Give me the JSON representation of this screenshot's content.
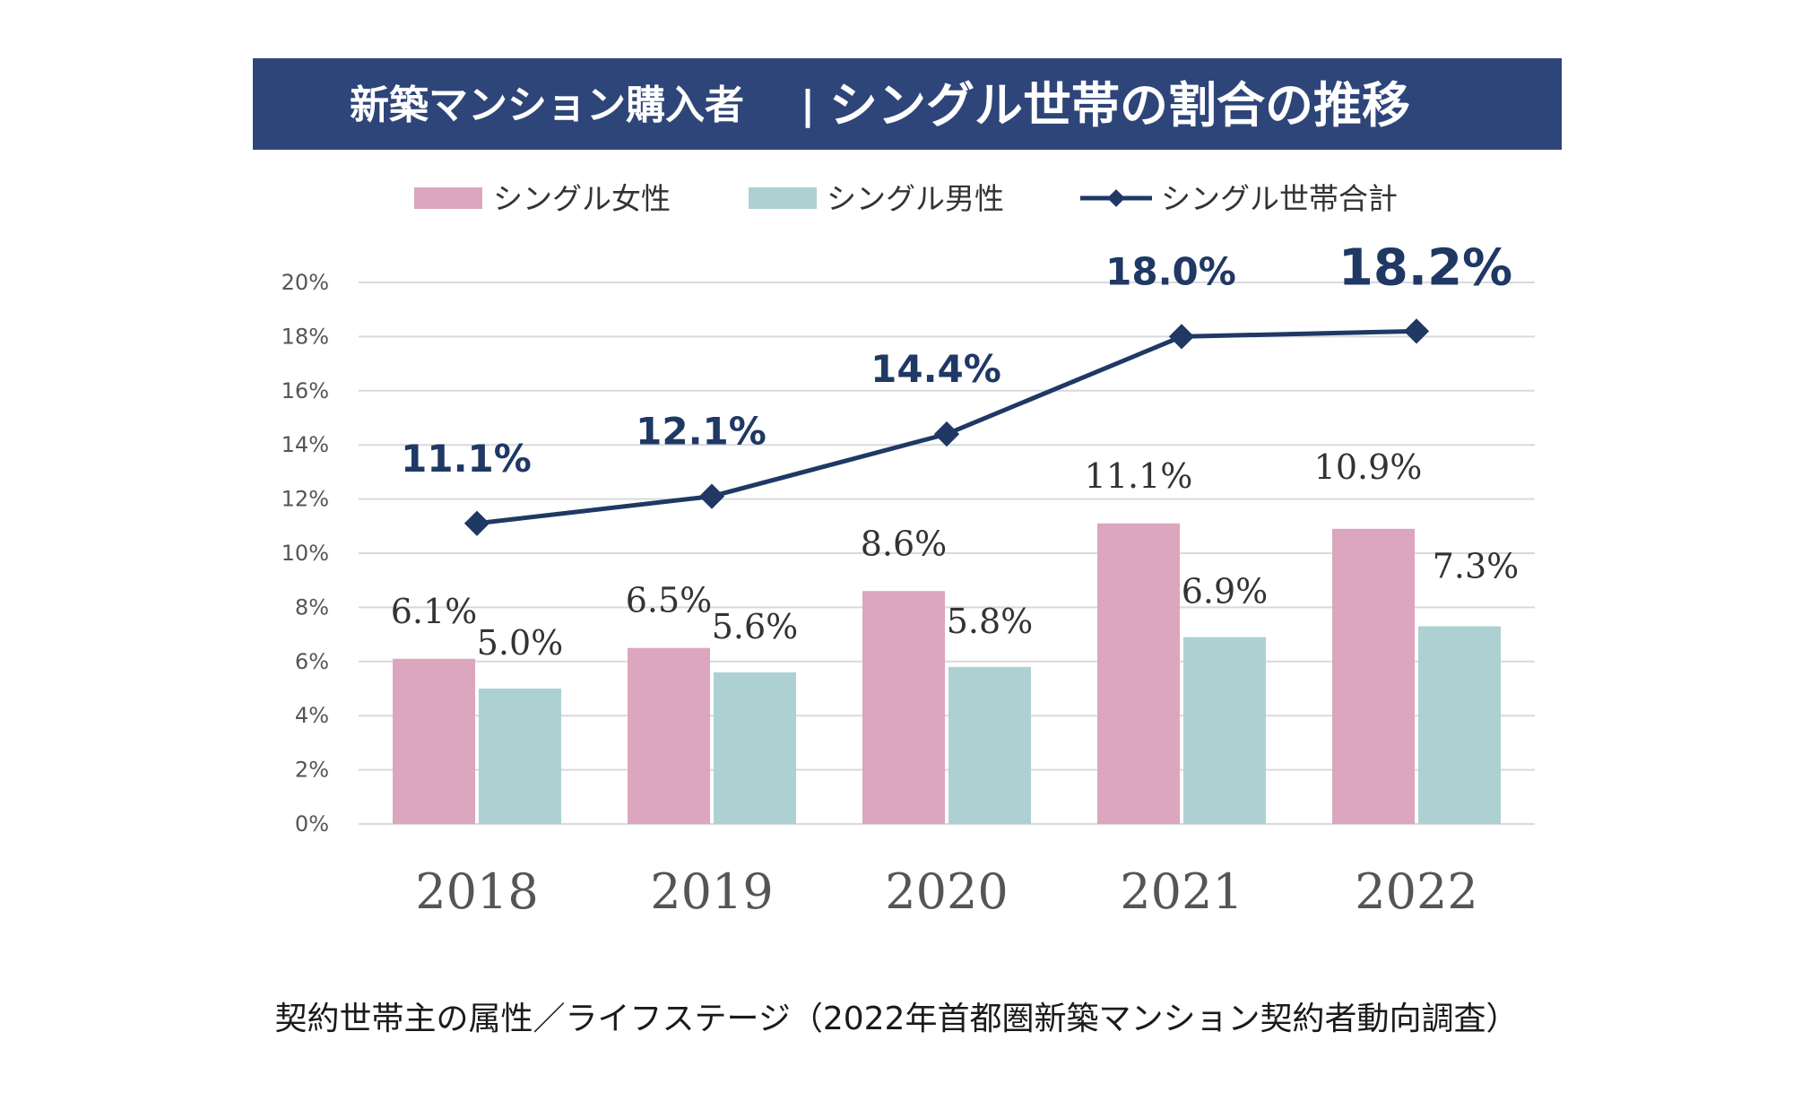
{
  "chart_data": {
    "type": "bar",
    "title_part1": "新築マンション購入者",
    "title_separator": "|",
    "title_part2": "シングル世帯の割合の推移",
    "caption": "契約世帯主の属性／ライフステージ（2022年首都圏新築マンション契約者動向調査）",
    "categories": [
      "2018",
      "2019",
      "2020",
      "2021",
      "2022"
    ],
    "ylim": [
      0,
      20
    ],
    "yticks": [
      "0%",
      "2%",
      "4%",
      "6%",
      "8%",
      "10%",
      "12%",
      "14%",
      "16%",
      "18%",
      "20%"
    ],
    "grid": true,
    "legend_position": "top",
    "series": [
      {
        "name": "シングル女性",
        "kind": "bar",
        "color": "#dba6be",
        "values": [
          6.1,
          6.5,
          8.6,
          11.1,
          10.9
        ],
        "labels": [
          "6.1%",
          "6.5%",
          "8.6%",
          "11.1%",
          "10.9%"
        ]
      },
      {
        "name": "シングル男性",
        "kind": "bar",
        "color": "#add1d3",
        "values": [
          5.0,
          5.6,
          5.8,
          6.9,
          7.3
        ],
        "labels": [
          "5.0%",
          "5.6%",
          "5.8%",
          "6.9%",
          "7.3%"
        ]
      },
      {
        "name": "シングル世帯合計",
        "kind": "line",
        "color": "#1f3864",
        "values": [
          11.1,
          12.1,
          14.4,
          18.0,
          18.2
        ],
        "labels": [
          "11.1%",
          "12.1%",
          "14.4%",
          "18.0%",
          "18.2%"
        ]
      }
    ],
    "colors": {
      "title_bg": "#2e4579",
      "highlight_label": "#9b2d44",
      "grid": "#d9d9d9"
    }
  }
}
